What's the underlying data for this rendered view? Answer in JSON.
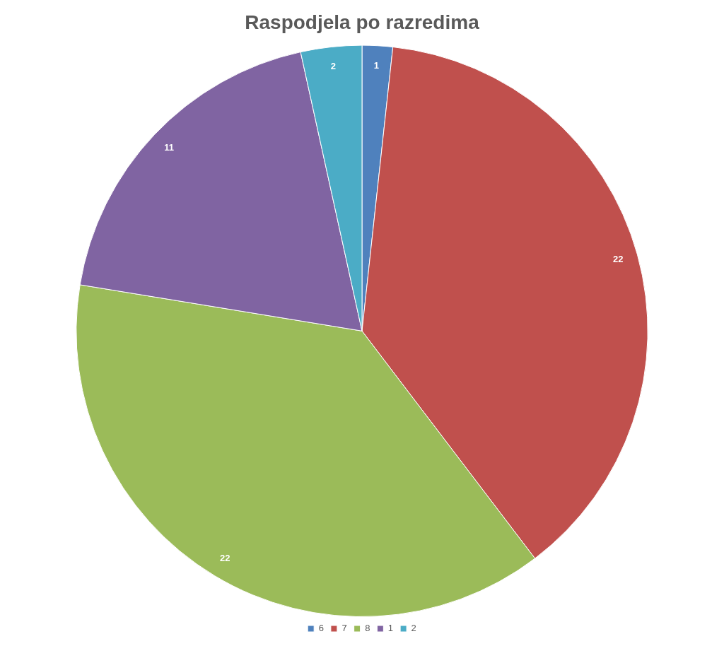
{
  "chart_data": {
    "type": "pie",
    "title": "Raspodjela po razredima",
    "categories": [
      "6",
      "7",
      "8",
      "1",
      "2"
    ],
    "values": [
      1,
      22,
      22,
      11,
      2
    ],
    "colors": [
      "#4f81bd",
      "#c0504d",
      "#9bbb59",
      "#8064a2",
      "#4bacc6"
    ],
    "data_labels": true,
    "legend": "bottom"
  }
}
